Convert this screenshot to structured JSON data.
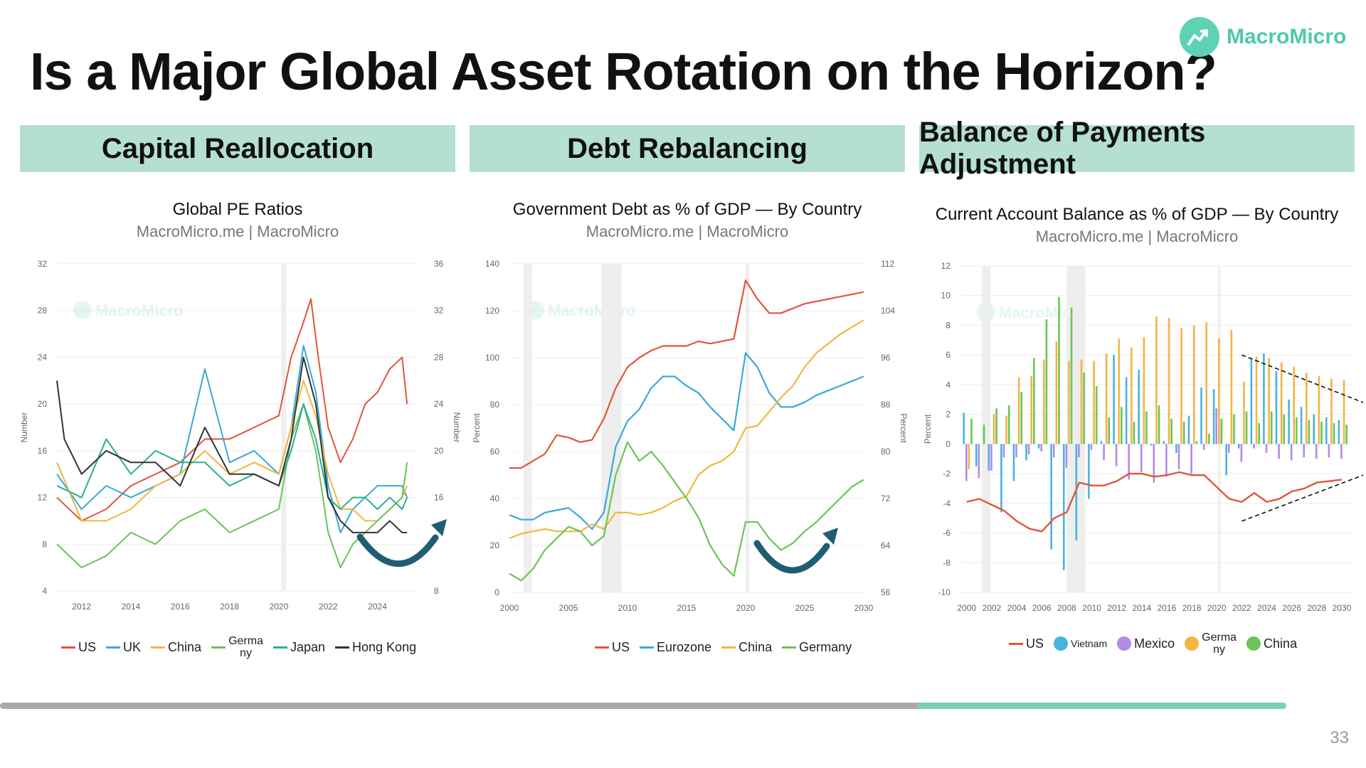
{
  "title": "Is a Major Global Asset Rotation on the Horizon?",
  "logo_text": "MacroMicro",
  "watermark": "MacroMicro",
  "page_number": "33",
  "progress": 0.8,
  "colors": {
    "accent": "#b4dfd2",
    "us": "#e0553d",
    "uk": "#3aa9d6",
    "china": "#f1b73e",
    "germany": "#6cc35a",
    "japan": "#2bb08f",
    "hongkong": "#333333",
    "vietnam": "#49b3e0",
    "mexico": "#b589e6",
    "germany_bar": "#f2b540",
    "china_bar": "#6cc35a",
    "arrow": "#1f5d73"
  },
  "panels": [
    {
      "header": "Capital Reallocation"
    },
    {
      "header": "Debt Rebalancing"
    },
    {
      "header": "Balance of Payments Adjustment"
    }
  ],
  "chart_data": [
    {
      "type": "line",
      "title": "Global PE Ratios",
      "subtitle": "MacroMicro.me | MacroMicro",
      "ylabel": "Number",
      "y2label": "Number",
      "xlim": [
        2011,
        2025.6
      ],
      "ylim": [
        4,
        32
      ],
      "y2lim": [
        8,
        36
      ],
      "x_ticks": [
        "2012",
        "2014",
        "2016",
        "2018",
        "2020",
        "2022",
        "2024"
      ],
      "y_ticks": [
        "4",
        "8",
        "12",
        "16",
        "20",
        "24",
        "28",
        "32"
      ],
      "y2_ticks": [
        "8",
        "16",
        "20",
        "24",
        "28",
        "32",
        "36"
      ],
      "series": [
        {
          "name": "US",
          "color": "#e0553d",
          "x": [
            2011,
            2012,
            2013,
            2014,
            2015,
            2016,
            2017,
            2018,
            2019,
            2020,
            2020.5,
            2021,
            2021.3,
            2021.6,
            2022,
            2022.5,
            2023,
            2023.5,
            2024,
            2024.5,
            2025,
            2025.2
          ],
          "y": [
            12,
            10,
            11,
            13,
            14,
            15,
            17,
            17,
            18,
            19,
            24,
            27,
            29,
            24,
            18,
            15,
            17,
            20,
            21,
            23,
            24,
            20
          ]
        },
        {
          "name": "UK",
          "color": "#3aa9d6",
          "x": [
            2011,
            2012,
            2013,
            2014,
            2015,
            2016,
            2017,
            2018,
            2019,
            2020,
            2020.5,
            2021,
            2021.5,
            2022,
            2022.5,
            2023,
            2023.5,
            2024,
            2024.5,
            2025,
            2025.2
          ],
          "y": [
            14,
            11,
            13,
            12,
            13,
            14,
            23,
            15,
            16,
            14,
            18,
            25,
            21,
            13,
            9,
            11,
            12,
            13,
            13,
            13,
            12
          ]
        },
        {
          "name": "China",
          "color": "#f1b73e",
          "x": [
            2011,
            2012,
            2013,
            2014,
            2015,
            2016,
            2017,
            2018,
            2019,
            2020,
            2020.5,
            2021,
            2021.5,
            2022,
            2022.5,
            2023,
            2023.5,
            2024,
            2024.5,
            2025,
            2025.2
          ],
          "y": [
            15,
            10,
            10,
            11,
            13,
            14,
            16,
            14,
            15,
            14,
            18,
            22,
            19,
            14,
            11,
            11,
            10,
            10,
            11,
            12,
            13
          ]
        },
        {
          "name": "Germany",
          "color": "#6cc35a",
          "x": [
            2011,
            2012,
            2013,
            2014,
            2015,
            2016,
            2017,
            2018,
            2019,
            2020,
            2020.5,
            2021,
            2021.5,
            2022,
            2022.5,
            2023,
            2023.5,
            2024,
            2024.5,
            2025,
            2025.2
          ],
          "y": [
            8,
            6,
            7,
            9,
            8,
            10,
            11,
            9,
            10,
            11,
            17,
            20,
            16,
            9,
            6,
            8,
            9,
            10,
            11,
            12,
            15
          ]
        },
        {
          "name": "Japan",
          "color": "#2bb08f",
          "x": [
            2011,
            2012,
            2013,
            2014,
            2015,
            2016,
            2017,
            2018,
            2019,
            2020,
            2020.5,
            2021,
            2021.5,
            2022,
            2022.5,
            2023,
            2023.5,
            2024,
            2024.5,
            2025,
            2025.2
          ],
          "y": [
            13,
            12,
            17,
            14,
            16,
            15,
            15,
            13,
            14,
            13,
            16,
            20,
            17,
            12,
            11,
            12,
            12,
            11,
            12,
            11,
            12
          ]
        },
        {
          "name": "Hong Kong",
          "color": "#333333",
          "x": [
            2011,
            2011.3,
            2012,
            2013,
            2014,
            2015,
            2016,
            2017,
            2018,
            2019,
            2020,
            2020.5,
            2021,
            2021.5,
            2022,
            2022.5,
            2023,
            2023.5,
            2024,
            2024.5,
            2025,
            2025.2
          ],
          "y": [
            22,
            17,
            14,
            16,
            15,
            15,
            13,
            18,
            14,
            14,
            13,
            17,
            24,
            20,
            12,
            10,
            9,
            9,
            9,
            10,
            9,
            9
          ]
        }
      ],
      "legend": [
        "US",
        "UK",
        "China",
        "Germa\nny",
        "Japan",
        "Hong Kong"
      ]
    },
    {
      "type": "line",
      "title": "Government Debt as % of GDP — By Country",
      "subtitle": "MacroMicro.me | MacroMicro",
      "ylabel": "Percent",
      "y2label": "Percent",
      "xlim": [
        2000,
        2030
      ],
      "ylim": [
        0,
        140
      ],
      "y2lim": [
        56,
        112
      ],
      "x_ticks": [
        "2000",
        "2005",
        "2010",
        "2015",
        "2020",
        "2025",
        "2030"
      ],
      "y_ticks": [
        "0",
        "20",
        "40",
        "60",
        "80",
        "100",
        "120",
        "140"
      ],
      "y2_ticks": [
        "56",
        "64",
        "72",
        "80",
        "88",
        "96",
        "104",
        "112"
      ],
      "series": [
        {
          "name": "US",
          "color": "#e0553d",
          "x": [
            2000,
            2001,
            2002,
            2003,
            2004,
            2005,
            2006,
            2007,
            2008,
            2009,
            2010,
            2011,
            2012,
            2013,
            2014,
            2015,
            2016,
            2017,
            2018,
            2019,
            2020,
            2021,
            2022,
            2023,
            2024,
            2025,
            2026,
            2027,
            2028,
            2029,
            2030
          ],
          "y": [
            53,
            53,
            56,
            59,
            67,
            66,
            64,
            65,
            74,
            87,
            96,
            100,
            103,
            105,
            105,
            105,
            107,
            106,
            107,
            108,
            133,
            125,
            119,
            119,
            121,
            123,
            124,
            125,
            126,
            127,
            128
          ]
        },
        {
          "name": "Eurozone",
          "color": "#3aa9d6",
          "x": [
            2000,
            2001,
            2002,
            2003,
            2004,
            2005,
            2006,
            2007,
            2008,
            2009,
            2010,
            2011,
            2012,
            2013,
            2014,
            2015,
            2016,
            2017,
            2018,
            2019,
            2020,
            2021,
            2022,
            2023,
            2024,
            2025,
            2026,
            2027,
            2028,
            2029,
            2030
          ],
          "y": [
            33,
            31,
            31,
            34,
            35,
            36,
            32,
            27,
            34,
            62,
            73,
            78,
            87,
            92,
            92,
            88,
            85,
            79,
            74,
            69,
            102,
            96,
            85,
            79,
            79,
            81,
            84,
            86,
            88,
            90,
            92
          ]
        },
        {
          "name": "China",
          "color": "#f1b73e",
          "x": [
            2000,
            2001,
            2002,
            2003,
            2004,
            2005,
            2006,
            2007,
            2008,
            2009,
            2010,
            2011,
            2012,
            2013,
            2014,
            2015,
            2016,
            2017,
            2018,
            2019,
            2020,
            2021,
            2022,
            2023,
            2024,
            2025,
            2026,
            2027,
            2028,
            2029,
            2030
          ],
          "y": [
            23,
            25,
            26,
            27,
            26,
            26,
            26,
            29,
            27,
            34,
            34,
            33,
            34,
            36,
            39,
            41,
            50,
            54,
            56,
            60,
            70,
            71,
            77,
            83,
            88,
            96,
            102,
            106,
            110,
            113,
            116
          ]
        },
        {
          "name": "Germany",
          "color": "#6cc35a",
          "x": [
            2000,
            2001,
            2002,
            2003,
            2004,
            2005,
            2006,
            2007,
            2008,
            2009,
            2010,
            2011,
            2012,
            2013,
            2014,
            2015,
            2016,
            2017,
            2018,
            2019,
            2020,
            2021,
            2022,
            2023,
            2024,
            2025,
            2026,
            2027,
            2028,
            2029,
            2030
          ],
          "y": [
            8,
            5,
            10,
            18,
            23,
            28,
            26,
            20,
            24,
            50,
            64,
            56,
            60,
            54,
            47,
            40,
            32,
            20,
            12,
            7,
            30,
            30,
            23,
            18,
            21,
            26,
            30,
            35,
            40,
            45,
            48
          ]
        }
      ],
      "legend": [
        "US",
        "Eurozone",
        "China",
        "Germany"
      ]
    },
    {
      "type": "bar",
      "title": "Current Account Balance as % of GDP — By Country",
      "subtitle": "MacroMicro.me | MacroMicro",
      "ylabel": "Percent",
      "xlim": [
        1999.5,
        2030.8
      ],
      "ylim": [
        -10,
        12
      ],
      "x_ticks": [
        "2000",
        "2002",
        "2004",
        "2006",
        "2008",
        "2010",
        "2012",
        "2014",
        "2016",
        "2018",
        "2020",
        "2022",
        "2024",
        "2026",
        "2028",
        "2030"
      ],
      "y_ticks": [
        "-10",
        "-8",
        "-6",
        "-4",
        "-2",
        "0",
        "2",
        "4",
        "6",
        "8",
        "10",
        "12"
      ],
      "categories": [
        2000,
        2001,
        2002,
        2003,
        2004,
        2005,
        2006,
        2007,
        2008,
        2009,
        2010,
        2011,
        2012,
        2013,
        2014,
        2015,
        2016,
        2017,
        2018,
        2019,
        2020,
        2021,
        2022,
        2023,
        2024,
        2025,
        2026,
        2027,
        2028,
        2029,
        2030
      ],
      "series": [
        {
          "name": "US",
          "type": "line",
          "color": "#e0553d",
          "values": [
            -3.9,
            -3.7,
            -4.1,
            -4.5,
            -5.2,
            -5.7,
            -5.9,
            -5.0,
            -4.6,
            -2.6,
            -2.8,
            -2.8,
            -2.5,
            -2.0,
            -2.0,
            -2.2,
            -2.1,
            -1.9,
            -2.1,
            -2.1,
            -2.9,
            -3.7,
            -3.9,
            -3.3,
            -3.9,
            -3.7,
            -3.2,
            -3.0,
            -2.6,
            -2.5,
            -2.4
          ]
        },
        {
          "name": "Vietnam",
          "color": "#49b3e0",
          "values": [
            2.1,
            -1.5,
            -1.8,
            -4.6,
            -2.5,
            -1.1,
            -0.3,
            -7.1,
            -8.5,
            -6.5,
            -3.7,
            0.2,
            6.0,
            4.5,
            5.0,
            -0.1,
            0.2,
            -0.6,
            1.9,
            3.8,
            3.7,
            -2.1,
            -0.3,
            5.8,
            6.1,
            4.9,
            3.0,
            2.5,
            2.0,
            1.8,
            1.6
          ]
        },
        {
          "name": "Mexico",
          "color": "#b589e6",
          "values": [
            -2.5,
            -2.3,
            -1.8,
            -0.9,
            -0.9,
            -0.7,
            -0.5,
            -0.9,
            -1.6,
            -0.9,
            -0.4,
            -1.1,
            -1.5,
            -2.4,
            -1.9,
            -2.6,
            -2.2,
            -1.7,
            -2.0,
            -0.4,
            2.4,
            -0.6,
            -1.2,
            -0.3,
            -0.6,
            -1.0,
            -1.1,
            -0.9,
            -1.0,
            -0.9,
            -1.0
          ]
        },
        {
          "name": "Germany",
          "color": "#f2b540",
          "values": [
            -1.7,
            0,
            2.0,
            1.9,
            4.5,
            4.6,
            5.7,
            6.9,
            5.6,
            5.7,
            5.6,
            6.1,
            7.1,
            6.5,
            7.2,
            8.6,
            8.5,
            7.8,
            8.0,
            8.2,
            7.1,
            7.7,
            4.2,
            5.9,
            5.8,
            5.5,
            5.2,
            4.8,
            4.6,
            4.4,
            4.3
          ]
        },
        {
          "name": "China",
          "color": "#6cc35a",
          "values": [
            1.7,
            1.3,
            2.4,
            2.6,
            3.5,
            5.8,
            8.4,
            9.9,
            9.2,
            4.8,
            3.9,
            1.8,
            2.5,
            1.5,
            2.2,
            2.6,
            1.7,
            1.5,
            0.2,
            0.7,
            1.7,
            2.0,
            2.2,
            1.4,
            2.2,
            2.0,
            1.8,
            1.6,
            1.5,
            1.4,
            1.3
          ]
        }
      ],
      "legend": [
        "US",
        "Vietnam",
        "Mexico",
        "Germa\nny",
        "China"
      ]
    }
  ]
}
